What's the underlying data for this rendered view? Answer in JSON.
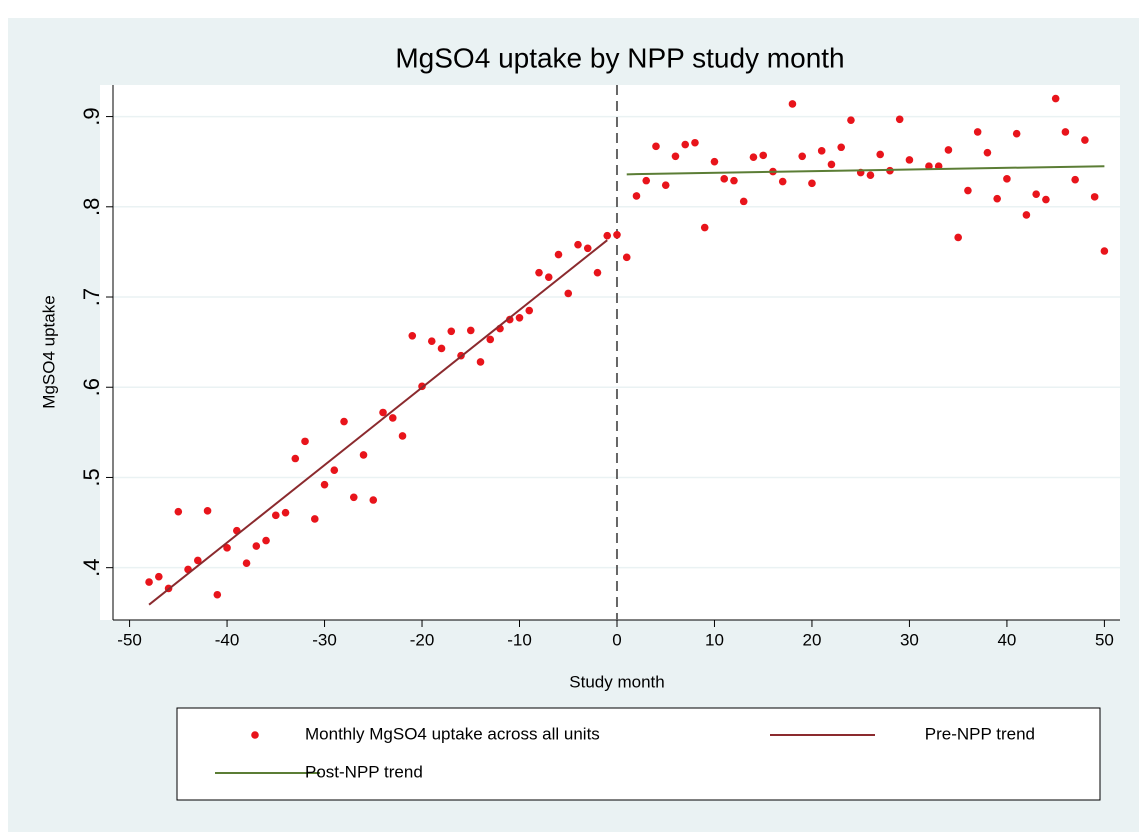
{
  "chart_data": {
    "type": "scatter",
    "title": "MgSO4 uptake by NPP study month",
    "x_label": "Study month",
    "y_label": "MgSO4 uptake",
    "xlim": [
      -51.7,
      51.6
    ],
    "ylim": [
      0.342,
      0.935
    ],
    "xticks": [
      -50,
      -40,
      -30,
      -20,
      -10,
      0,
      10,
      20,
      30,
      40,
      50
    ],
    "yticks": [
      {
        "value": 0.4,
        "label": ".4"
      },
      {
        "value": 0.5,
        "label": ".5"
      },
      {
        "value": 0.6,
        "label": ".6"
      },
      {
        "value": 0.7,
        "label": ".7"
      },
      {
        "value": 0.8,
        "label": ".8"
      },
      {
        "value": 0.9,
        "label": ".9"
      }
    ],
    "grid": true,
    "vline": 0,
    "series": [
      {
        "name": "Monthly MgSO4 uptake across all units",
        "color": "#e8141b",
        "kind": "markers",
        "x": [
          -48,
          -47,
          -46,
          -45,
          -44,
          -43,
          -42,
          -41,
          -40,
          -39,
          -38,
          -37,
          -36,
          -35,
          -34,
          -33,
          -32,
          -31,
          -30,
          -29,
          -28,
          -27,
          -26,
          -25,
          -24,
          -23,
          -22,
          -21,
          -20,
          -19,
          -18,
          -17,
          -16,
          -15,
          -14,
          -13,
          -12,
          -11,
          -10,
          -9,
          -8,
          -7,
          -6,
          -5,
          -4,
          -3,
          -2,
          -1,
          0,
          1,
          2,
          3,
          4,
          5,
          6,
          7,
          8,
          9,
          10,
          11,
          12,
          13,
          14,
          15,
          16,
          17,
          18,
          19,
          20,
          21,
          22,
          23,
          24,
          25,
          26,
          27,
          28,
          29,
          30,
          32,
          33,
          34,
          35,
          36,
          37,
          38,
          39,
          40,
          41,
          42,
          43,
          44,
          45,
          46,
          47,
          48,
          49,
          50
        ],
        "values": [
          0.384,
          0.39,
          0.377,
          0.462,
          0.398,
          0.408,
          0.463,
          0.37,
          0.422,
          0.441,
          0.405,
          0.424,
          0.43,
          0.458,
          0.461,
          0.521,
          0.54,
          0.454,
          0.492,
          0.508,
          0.562,
          0.478,
          0.525,
          0.475,
          0.572,
          0.566,
          0.546,
          0.657,
          0.601,
          0.651,
          0.643,
          0.662,
          0.635,
          0.663,
          0.628,
          0.653,
          0.665,
          0.675,
          0.677,
          0.685,
          0.727,
          0.722,
          0.747,
          0.704,
          0.758,
          0.754,
          0.727,
          0.768,
          0.769,
          0.744,
          0.812,
          0.829,
          0.867,
          0.824,
          0.856,
          0.869,
          0.871,
          0.777,
          0.85,
          0.831,
          0.829,
          0.806,
          0.855,
          0.857,
          0.839,
          0.828,
          0.914,
          0.856,
          0.826,
          0.862,
          0.847,
          0.866,
          0.896,
          0.838,
          0.835,
          0.858,
          0.84,
          0.897,
          0.852,
          0.845,
          0.845,
          0.863,
          0.766,
          0.818,
          0.883,
          0.86,
          0.809,
          0.831,
          0.881,
          0.791,
          0.814,
          0.808,
          0.92,
          0.883,
          0.83,
          0.874,
          0.811,
          0.751
        ]
      },
      {
        "name": "Pre-NPP trend",
        "color": "#8b2a2e",
        "kind": "line",
        "x": [
          -48,
          -1
        ],
        "values": [
          0.359,
          0.763
        ]
      },
      {
        "name": "Post-NPP trend",
        "color": "#5b7d35",
        "kind": "line",
        "x": [
          1,
          50
        ],
        "values": [
          0.836,
          0.845
        ]
      }
    ]
  }
}
